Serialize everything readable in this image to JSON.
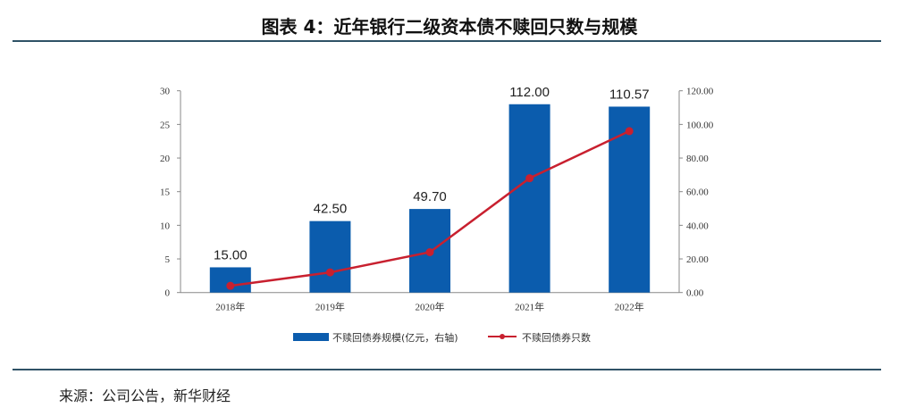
{
  "title": "图表 4：近年银行二级资本债不赎回只数与规模",
  "source": "来源：公司公告，新华财经",
  "colors": {
    "bar": "#0b5cad",
    "line": "#c8202f",
    "rule": "#2f5266"
  },
  "chart_data": {
    "type": "bar+line",
    "categories": [
      "2018年",
      "2019年",
      "2020年",
      "2021年",
      "2022年"
    ],
    "series": [
      {
        "name": "不赎回债券规模(亿元，右轴)",
        "type": "bar",
        "axis": "right",
        "values": [
          15.0,
          42.5,
          49.7,
          112.0,
          110.57
        ],
        "labels": [
          "15.00",
          "42.50",
          "49.70",
          "112.00",
          "110.57"
        ]
      },
      {
        "name": "不赎回债券只数",
        "type": "line",
        "axis": "left",
        "values": [
          1,
          3,
          6,
          17,
          24
        ]
      }
    ],
    "left_axis": {
      "range": [
        0,
        30
      ],
      "ticks": [
        "0",
        "5",
        "10",
        "15",
        "20",
        "25",
        "30"
      ]
    },
    "right_axis": {
      "range": [
        0,
        120
      ],
      "ticks": [
        "0.00",
        "20.00",
        "40.00",
        "60.00",
        "80.00",
        "100.00",
        "120.00"
      ]
    },
    "legend": "bottom"
  }
}
